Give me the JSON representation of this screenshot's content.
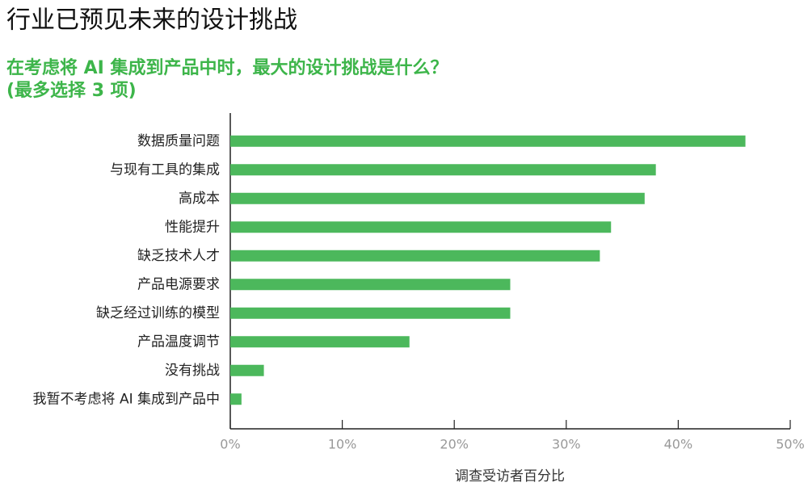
{
  "chart_data": {
    "type": "bar",
    "orientation": "horizontal",
    "title": "行业已预见未来的设计挑战",
    "subtitle": [
      "在考虑将 AI 集成到产品中时，最大的设计挑战是什么？",
      "(最多选择 3 项)"
    ],
    "x_label": "调查受访者百分比",
    "categories": [
      "数据质量问题",
      "与现有工具的集成",
      "高成本",
      "性能提升",
      "缺乏技术人才",
      "产品电源要求",
      "缺乏经过训练的模型",
      "产品温度调节",
      "没有挑战",
      "我暂不考虑将 AI 集成到产品中"
    ],
    "values": [
      46,
      38,
      37,
      34,
      33,
      25,
      25,
      16,
      3,
      1
    ],
    "color": "#4cb85c",
    "xlim": [
      0,
      50
    ],
    "xticks": [
      {
        "value": 0,
        "label": "0%"
      },
      {
        "value": 10,
        "label": "10%"
      },
      {
        "value": 20,
        "label": "20%"
      },
      {
        "value": 30,
        "label": "30%"
      },
      {
        "value": 40,
        "label": "40%"
      },
      {
        "value": 50,
        "label": "50%"
      }
    ]
  }
}
